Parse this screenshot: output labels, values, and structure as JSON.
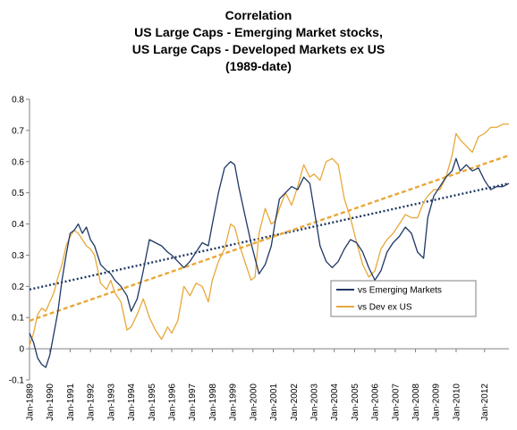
{
  "chart_data": {
    "type": "line",
    "title": [
      "Correlation",
      "US Large Caps - Emerging Market  stocks,",
      "US Large Caps - Developed Markets ex US",
      "(1989-date)"
    ],
    "xlabel": "",
    "ylabel": "",
    "ylim": [
      -0.1,
      0.8
    ],
    "yticks": [
      -0.1,
      0,
      0.1,
      0.2,
      0.3,
      0.4,
      0.5,
      0.6,
      0.7,
      0.8
    ],
    "xlim": [
      1989.0,
      2012.6
    ],
    "xtick_labels": [
      "Jan-1989",
      "Jan-1990",
      "Jan-1991",
      "Jan-1992",
      "Jan-1993",
      "Jan-1994",
      "Jan-1995",
      "Jan-1996",
      "Jan-1997",
      "Jan-1998",
      "Jan-1999",
      "Jan-2000",
      "Jan-2001",
      "Jan-2002",
      "Jan-2003",
      "Jan-2004",
      "Jan-2005",
      "Jan-2006",
      "Jan-2007",
      "Jan-2008",
      "Jan-2009",
      "Jan-2010",
      "Jan-2012"
    ],
    "xtick_positions": [
      1989,
      1990,
      1991,
      1992,
      1993,
      1994,
      1995,
      1996,
      1997,
      1998,
      1999,
      2000,
      2001,
      2002,
      2003,
      2004,
      2005,
      2006,
      2007,
      2008,
      2009,
      2010,
      2011.4
    ],
    "grid": false,
    "legend_position": "lower-right",
    "series": [
      {
        "name": "vs Emerging Markets",
        "color": "#1f3864",
        "x": [
          1989.0,
          1989.2,
          1989.4,
          1989.6,
          1989.8,
          1990.0,
          1990.2,
          1990.4,
          1990.6,
          1990.8,
          1991.0,
          1991.2,
          1991.4,
          1991.6,
          1991.8,
          1992.0,
          1992.2,
          1992.5,
          1992.8,
          1993.0,
          1993.2,
          1993.5,
          1993.8,
          1994.0,
          1994.3,
          1994.6,
          1994.9,
          1995.2,
          1995.5,
          1995.8,
          1996.0,
          1996.3,
          1996.6,
          1996.9,
          1997.2,
          1997.5,
          1997.8,
          1998.0,
          1998.3,
          1998.6,
          1998.9,
          1999.1,
          1999.3,
          1999.6,
          1999.9,
          2000.1,
          2000.3,
          2000.6,
          2000.9,
          2001.1,
          2001.3,
          2001.6,
          2001.9,
          2002.2,
          2002.5,
          2002.8,
          2003.0,
          2003.3,
          2003.6,
          2003.9,
          2004.2,
          2004.5,
          2004.8,
          2005.1,
          2005.4,
          2005.7,
          2006.0,
          2006.3,
          2006.6,
          2006.9,
          2007.2,
          2007.5,
          2007.8,
          2008.1,
          2008.4,
          2008.6,
          2008.9,
          2009.2,
          2009.5,
          2009.8,
          2010.0,
          2010.2,
          2010.5,
          2010.8,
          2011.1,
          2011.4,
          2011.7,
          2012.0,
          2012.3,
          2012.6
        ],
        "values": [
          0.05,
          0.02,
          -0.03,
          -0.05,
          -0.06,
          -0.02,
          0.05,
          0.12,
          0.22,
          0.3,
          0.37,
          0.38,
          0.4,
          0.37,
          0.39,
          0.35,
          0.33,
          0.27,
          0.25,
          0.24,
          0.22,
          0.2,
          0.17,
          0.12,
          0.16,
          0.25,
          0.35,
          0.34,
          0.33,
          0.31,
          0.3,
          0.28,
          0.26,
          0.28,
          0.31,
          0.34,
          0.33,
          0.4,
          0.5,
          0.58,
          0.6,
          0.59,
          0.52,
          0.43,
          0.34,
          0.29,
          0.24,
          0.27,
          0.33,
          0.41,
          0.48,
          0.5,
          0.52,
          0.51,
          0.55,
          0.53,
          0.45,
          0.33,
          0.28,
          0.26,
          0.28,
          0.32,
          0.35,
          0.34,
          0.31,
          0.26,
          0.22,
          0.25,
          0.31,
          0.34,
          0.36,
          0.39,
          0.37,
          0.31,
          0.29,
          0.42,
          0.49,
          0.52,
          0.55,
          0.57,
          0.61,
          0.57,
          0.59,
          0.57,
          0.58,
          0.54,
          0.51,
          0.52,
          0.52,
          0.53
        ]
      },
      {
        "name": "vs Dev ex US",
        "color": "#e8a838",
        "x": [
          1989.0,
          1989.2,
          1989.4,
          1989.6,
          1989.8,
          1990.0,
          1990.2,
          1990.4,
          1990.6,
          1990.8,
          1991.0,
          1991.2,
          1991.4,
          1991.6,
          1991.8,
          1992.0,
          1992.2,
          1992.5,
          1992.8,
          1993.0,
          1993.2,
          1993.5,
          1993.8,
          1994.0,
          1994.3,
          1994.6,
          1994.9,
          1995.2,
          1995.5,
          1995.8,
          1996.0,
          1996.3,
          1996.6,
          1996.9,
          1997.2,
          1997.5,
          1997.8,
          1998.0,
          1998.3,
          1998.6,
          1998.9,
          1999.1,
          1999.3,
          1999.6,
          1999.9,
          2000.1,
          2000.3,
          2000.6,
          2000.9,
          2001.1,
          2001.3,
          2001.6,
          2001.9,
          2002.2,
          2002.5,
          2002.8,
          2003.0,
          2003.3,
          2003.6,
          2003.9,
          2004.2,
          2004.5,
          2004.8,
          2005.1,
          2005.4,
          2005.7,
          2006.0,
          2006.3,
          2006.6,
          2006.9,
          2007.2,
          2007.5,
          2007.8,
          2008.1,
          2008.4,
          2008.6,
          2008.9,
          2009.2,
          2009.5,
          2009.8,
          2010.0,
          2010.2,
          2010.5,
          2010.8,
          2011.1,
          2011.4,
          2011.7,
          2012.0,
          2012.3,
          2012.6
        ],
        "values": [
          0.01,
          0.05,
          0.11,
          0.13,
          0.12,
          0.15,
          0.18,
          0.23,
          0.27,
          0.33,
          0.36,
          0.38,
          0.37,
          0.35,
          0.33,
          0.32,
          0.3,
          0.21,
          0.19,
          0.22,
          0.18,
          0.15,
          0.06,
          0.07,
          0.11,
          0.16,
          0.1,
          0.06,
          0.03,
          0.07,
          0.05,
          0.09,
          0.2,
          0.17,
          0.21,
          0.2,
          0.15,
          0.22,
          0.28,
          0.32,
          0.4,
          0.39,
          0.34,
          0.28,
          0.22,
          0.23,
          0.37,
          0.45,
          0.4,
          0.41,
          0.45,
          0.5,
          0.46,
          0.52,
          0.59,
          0.55,
          0.56,
          0.54,
          0.6,
          0.61,
          0.59,
          0.48,
          0.42,
          0.34,
          0.27,
          0.23,
          0.25,
          0.32,
          0.35,
          0.37,
          0.4,
          0.43,
          0.42,
          0.42,
          0.47,
          0.49,
          0.51,
          0.51,
          0.55,
          0.62,
          0.69,
          0.67,
          0.65,
          0.63,
          0.68,
          0.69,
          0.71,
          0.71,
          0.72,
          0.72
        ]
      },
      {
        "type": "trendline",
        "color": "#1f3864",
        "style": "dotted",
        "x": [
          1989.0,
          2012.6
        ],
        "values": [
          0.19,
          0.53
        ]
      },
      {
        "type": "trendline",
        "color": "#e8a838",
        "style": "dashed",
        "x": [
          1989.0,
          2012.6
        ],
        "values": [
          0.09,
          0.62
        ]
      }
    ]
  }
}
